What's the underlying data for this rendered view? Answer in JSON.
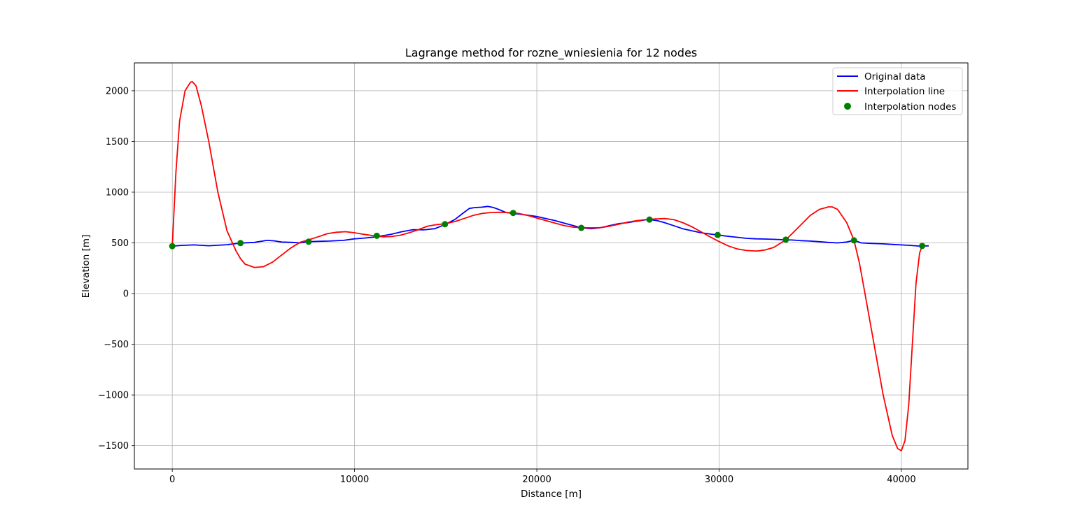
{
  "chart_data": {
    "type": "line",
    "title": "Lagrange method for rozne_wniesienia for 12 nodes",
    "xlabel": "Distance [m]",
    "ylabel": "Elevation [m]",
    "xlim": [
      -2080,
      43650
    ],
    "ylim": [
      -1730,
      2275
    ],
    "xticks": [
      0,
      10000,
      20000,
      30000,
      40000
    ],
    "xtick_labels": [
      "0",
      "10000",
      "20000",
      "30000",
      "40000"
    ],
    "yticks": [
      -1500,
      -1000,
      -500,
      0,
      500,
      1000,
      1500,
      2000
    ],
    "ytick_labels": [
      "−1500",
      "−1000",
      "−500",
      "0",
      "500",
      "1000",
      "1500",
      "2000"
    ],
    "grid": true,
    "legend_position": "top-right",
    "legend": [
      "Original data",
      "Interpolation line",
      "Interpolation nodes"
    ],
    "series": [
      {
        "name": "Original data",
        "kind": "line",
        "color": "#0000ff",
        "x": [
          0,
          500,
          1200,
          2000,
          3000,
          3700,
          4500,
          5200,
          5600,
          6000,
          6600,
          7000,
          7450,
          8000,
          8600,
          9400,
          10000,
          10600,
          11200,
          12000,
          12600,
          13200,
          13800,
          14400,
          14950,
          15500,
          16000,
          16300,
          16600,
          17000,
          17300,
          17600,
          17900,
          18300,
          18700,
          19200,
          19600,
          20000,
          20500,
          21000,
          21500,
          22000,
          22450,
          23000,
          23500,
          24000,
          24500,
          25000,
          25500,
          26000,
          26200,
          26600,
          27000,
          27500,
          28000,
          28500,
          29000,
          29900,
          30500,
          31000,
          31500,
          32000,
          32500,
          33000,
          33600,
          34000,
          34500,
          35000,
          35500,
          36000,
          36500,
          37000,
          37400,
          37800,
          38300,
          39000,
          39500,
          40000,
          40500,
          41000,
          41200,
          41500
        ],
        "y": [
          468,
          475,
          480,
          472,
          482,
          498,
          505,
          525,
          520,
          508,
          505,
          500,
          512,
          515,
          518,
          525,
          540,
          548,
          560,
          585,
          610,
          630,
          628,
          640,
          680,
          730,
          800,
          840,
          848,
          852,
          860,
          850,
          830,
          800,
          790,
          780,
          770,
          760,
          740,
          720,
          695,
          670,
          648,
          640,
          650,
          670,
          690,
          700,
          715,
          728,
          730,
          720,
          700,
          670,
          640,
          620,
          600,
          578,
          565,
          555,
          545,
          540,
          538,
          535,
          530,
          528,
          522,
          518,
          512,
          505,
          500,
          508,
          525,
          500,
          495,
          490,
          485,
          480,
          475,
          468,
          470,
          470
        ]
      },
      {
        "name": "Interpolation line",
        "kind": "line",
        "color": "#ff0000",
        "x": [
          0,
          200,
          400,
          700,
          1000,
          1100,
          1300,
          1600,
          2000,
          2500,
          3000,
          3500,
          3740,
          4000,
          4500,
          5000,
          5500,
          6000,
          6500,
          7000,
          7480,
          8000,
          8500,
          9000,
          9500,
          10000,
          10500,
          11000,
          11220,
          11600,
          12000,
          12500,
          13000,
          13500,
          14000,
          14500,
          14960,
          15500,
          16000,
          16500,
          17000,
          17500,
          18000,
          18200,
          18700,
          19000,
          19500,
          20000,
          20500,
          21000,
          21500,
          22000,
          22440,
          23000,
          23500,
          24000,
          24500,
          25000,
          25500,
          26000,
          26180,
          26500,
          27000,
          27500,
          28000,
          28500,
          29000,
          29500,
          29920,
          30500,
          31000,
          31500,
          32000,
          32200,
          32500,
          33000,
          33660,
          34000,
          34500,
          35000,
          35500,
          36000,
          36200,
          36500,
          37000,
          37400,
          37700,
          38000,
          38500,
          39000,
          39500,
          39800,
          40000,
          40200,
          40400,
          40600,
          40800,
          41000,
          41140
        ],
        "y": [
          468,
          1200,
          1700,
          2000,
          2085,
          2090,
          2050,
          1850,
          1500,
          1000,
          620,
          420,
          345,
          290,
          258,
          265,
          310,
          380,
          450,
          505,
          530,
          560,
          590,
          605,
          610,
          600,
          585,
          572,
          565,
          560,
          562,
          575,
          600,
          630,
          665,
          680,
          688,
          710,
          740,
          770,
          790,
          800,
          802,
          800,
          797,
          790,
          770,
          745,
          720,
          695,
          670,
          655,
          650,
          648,
          650,
          665,
          685,
          705,
          720,
          730,
          732,
          736,
          740,
          730,
          700,
          660,
          610,
          560,
          520,
          470,
          440,
          425,
          420,
          422,
          430,
          455,
          530,
          590,
          680,
          770,
          830,
          855,
          855,
          830,
          700,
          527,
          300,
          0,
          -500,
          -1000,
          -1400,
          -1530,
          -1550,
          -1450,
          -1100,
          -500,
          100,
          400,
          470
        ]
      },
      {
        "name": "Interpolation nodes",
        "kind": "scatter",
        "color": "#008000",
        "x": [
          0,
          3740,
          7480,
          11220,
          14960,
          18700,
          22440,
          26180,
          29920,
          33660,
          37400,
          41140
        ],
        "y": [
          468,
          498,
          512,
          570,
          684,
          795,
          648,
          730,
          578,
          532,
          525,
          470
        ]
      }
    ]
  }
}
